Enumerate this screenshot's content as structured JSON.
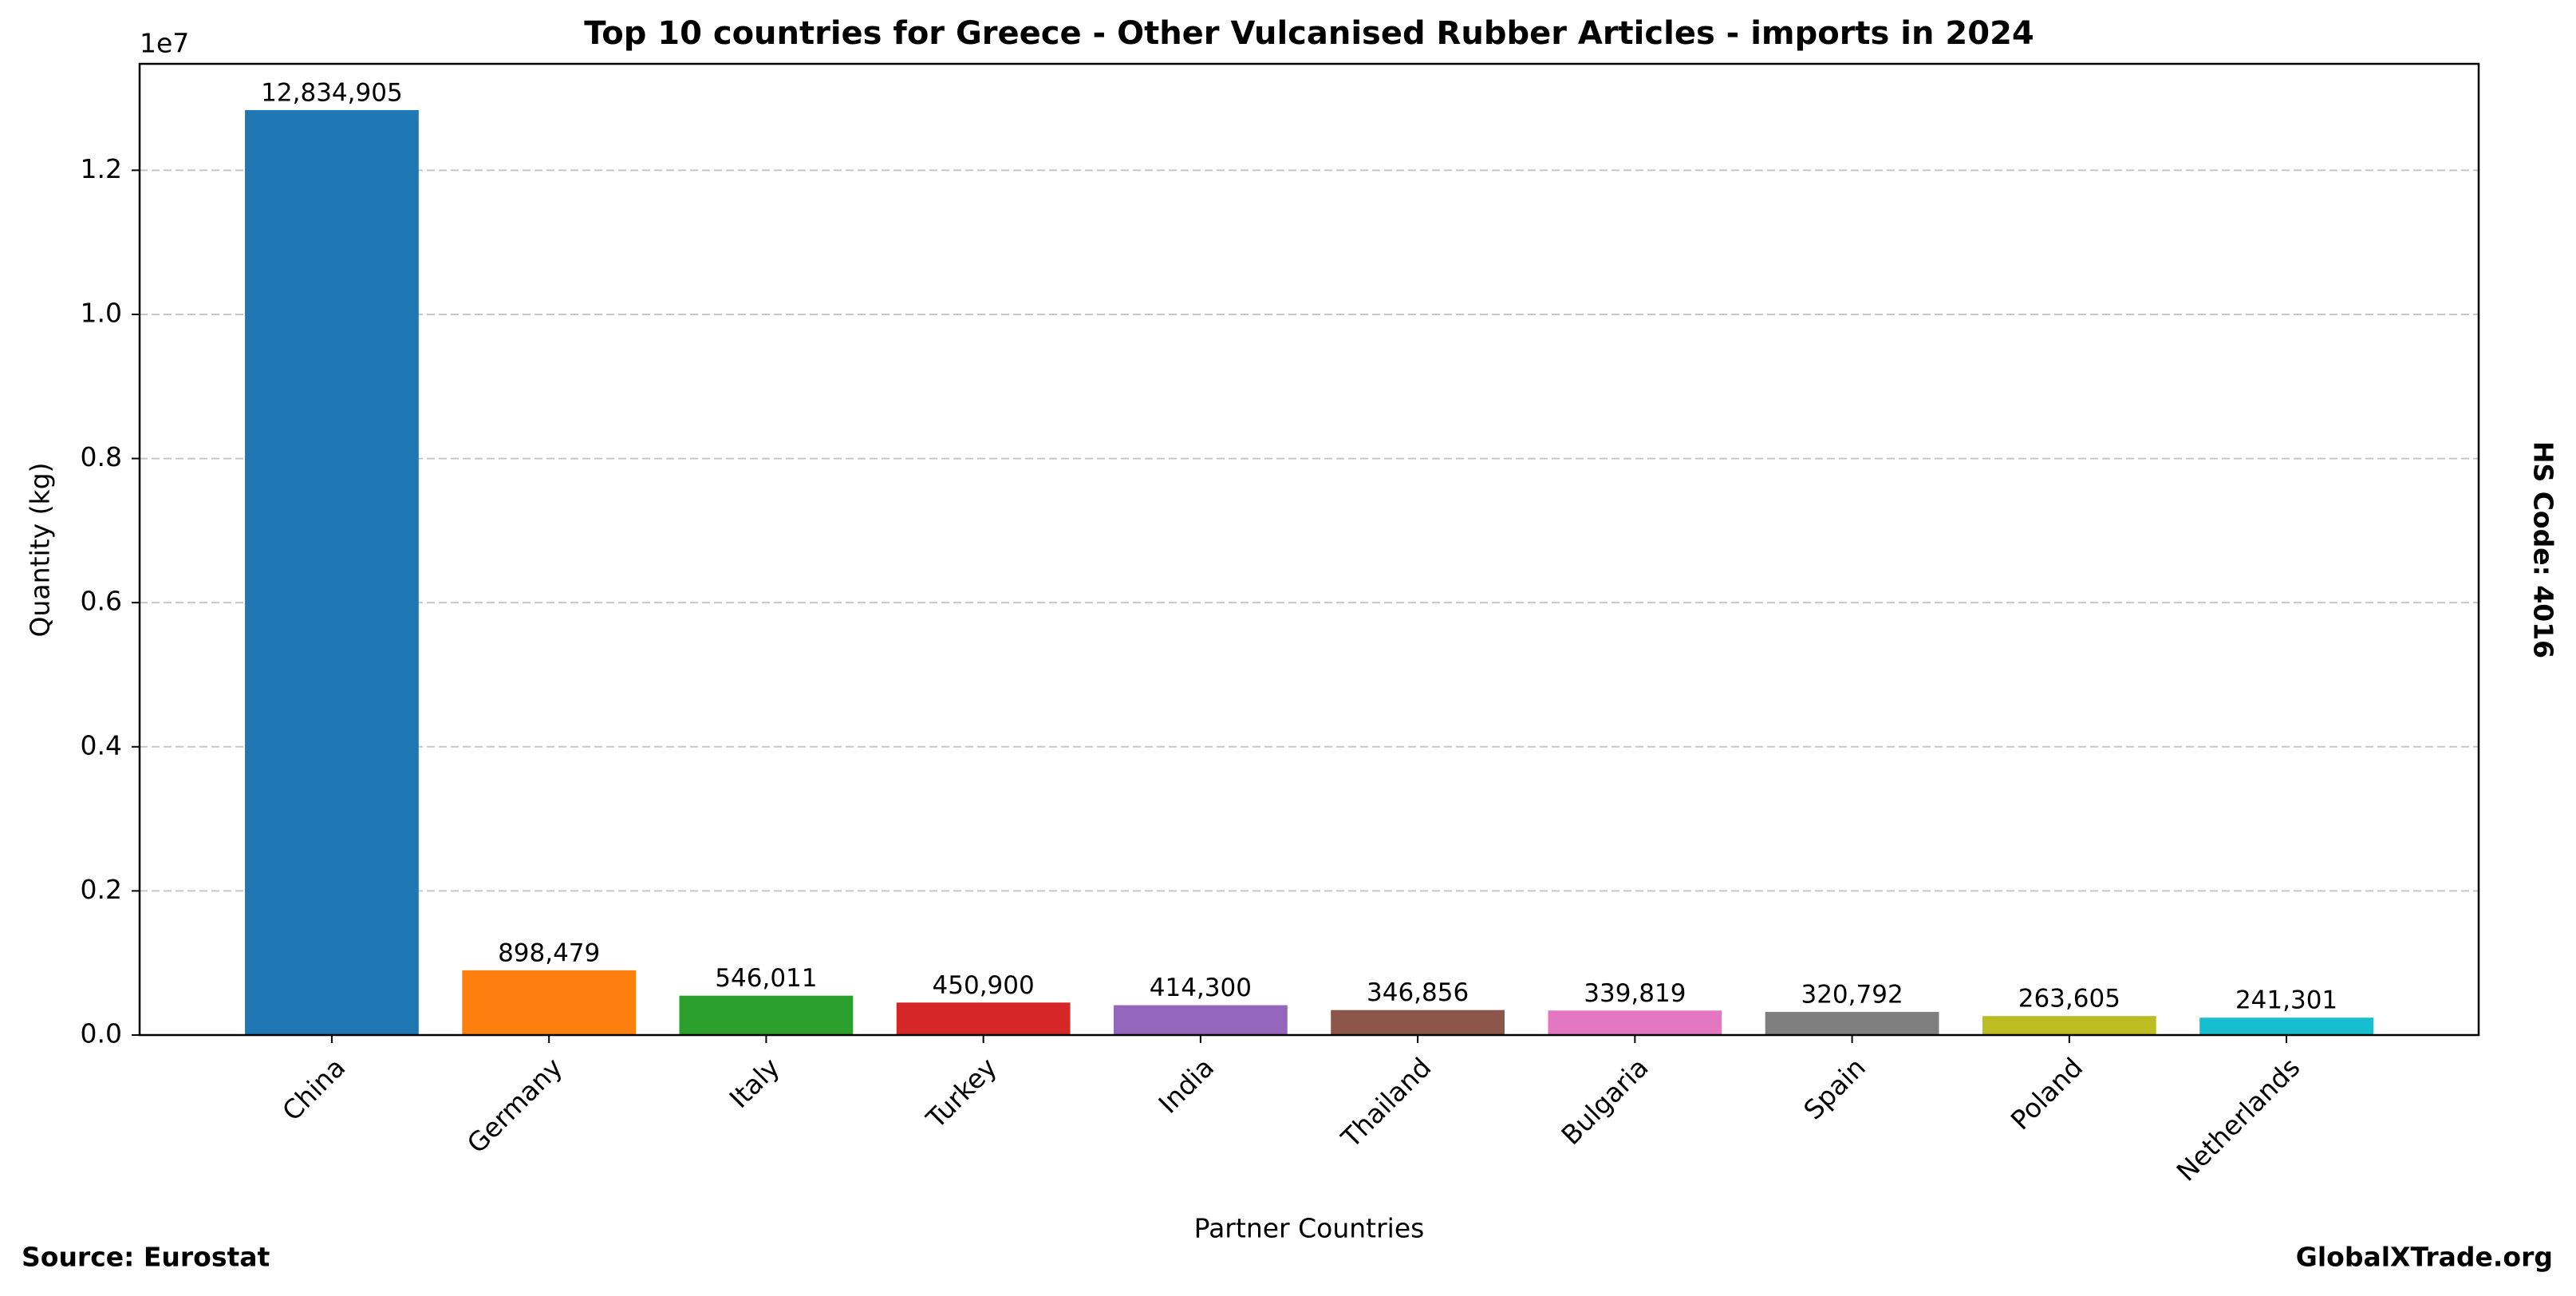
{
  "chart_data": {
    "type": "bar",
    "title": "Top 10 countries for Greece - Other Vulcanised Rubber Articles - imports in 2024",
    "xlabel": "Partner Countries",
    "ylabel": "Quantity (kg)",
    "y_offset_label": "1e7",
    "side_note": "HS Code: 4016",
    "source": "Source: Eurostat",
    "site": "GlobalXTrade.org",
    "categories": [
      "China",
      "Germany",
      "Italy",
      "Turkey",
      "India",
      "Thailand",
      "Bulgaria",
      "Spain",
      "Poland",
      "Netherlands"
    ],
    "values": [
      12834905,
      898479,
      546011,
      450900,
      414300,
      346856,
      339819,
      320792,
      263605,
      241301
    ],
    "value_labels": [
      "12,834,905",
      "898,479",
      "546,011",
      "450,900",
      "414,300",
      "346,856",
      "339,819",
      "320,792",
      "263,605",
      "241,301"
    ],
    "colors": [
      "#1f77b4",
      "#ff7f0e",
      "#2ca02c",
      "#d62728",
      "#9467bd",
      "#8c564b",
      "#e377c2",
      "#7f7f7f",
      "#bcbd22",
      "#17becf"
    ],
    "ylim": [
      0,
      13476650
    ],
    "yticks": [
      {
        "value": 0,
        "label": "0.0"
      },
      {
        "value": 2000000,
        "label": "0.2"
      },
      {
        "value": 4000000,
        "label": "0.4"
      },
      {
        "value": 6000000,
        "label": "0.6"
      },
      {
        "value": 8000000,
        "label": "0.8"
      },
      {
        "value": 10000000,
        "label": "1.0"
      },
      {
        "value": 12000000,
        "label": "1.2"
      }
    ],
    "grid": true
  }
}
